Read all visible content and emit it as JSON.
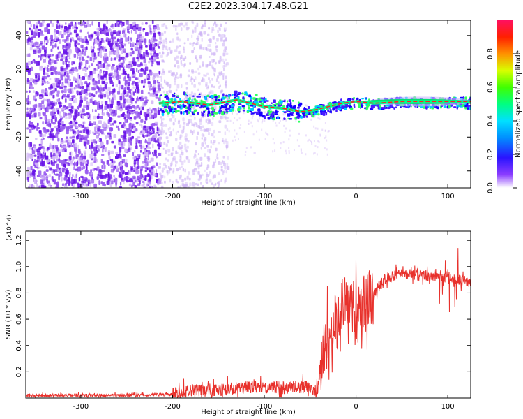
{
  "title": "C2E2.2023.304.17.48.G21",
  "chart_data": [
    {
      "type": "heatmap",
      "xlabel": "Height of straight line (km)",
      "ylabel": "Frequency (Hz)",
      "xlim": [
        -360,
        125
      ],
      "ylim": [
        -50,
        49
      ],
      "x_ticks": [
        -300,
        -200,
        -100,
        0,
        100
      ],
      "y_ticks": [
        -40,
        -20,
        0,
        20,
        40
      ],
      "colorbar": {
        "label": "Normalized spectral amplitude",
        "range": [
          0,
          1
        ],
        "ticks": [
          0.0,
          0.2,
          0.4,
          0.6,
          0.8
        ]
      },
      "ridge_line": {
        "x": [
          -215,
          -190,
          -160,
          -130,
          -100,
          -80,
          -60,
          -45,
          -30,
          -15,
          0,
          20,
          50,
          80,
          110,
          125
        ],
        "y": [
          0,
          1,
          -1,
          2,
          -2,
          -3,
          -5,
          -4,
          -2,
          0,
          1,
          0,
          1,
          1,
          1,
          1
        ]
      }
    },
    {
      "type": "line",
      "xlabel": "Height of straight line (km)",
      "ylabel": "SNR (10 * v/v)",
      "y_multiplier": "(x10^4)",
      "xlim": [
        -360,
        125
      ],
      "ylim": [
        0,
        1.27
      ],
      "x_ticks": [
        -300,
        -200,
        -100,
        0,
        100
      ],
      "y_ticks": [
        0.2,
        0.4,
        0.6,
        0.8,
        1.0,
        1.2
      ],
      "series": [
        {
          "color": "#e8312c",
          "x": [
            -360,
            -300,
            -250,
            -200,
            -180,
            -150,
            -120,
            -100,
            -80,
            -60,
            -50,
            -42,
            -38,
            -35,
            -30,
            -25,
            -20,
            -15,
            -10,
            -5,
            0,
            5,
            10,
            20,
            30,
            40,
            50,
            60,
            70,
            80,
            90,
            100,
            110,
            120,
            125
          ],
          "y": [
            0.02,
            0.02,
            0.02,
            0.03,
            0.06,
            0.06,
            0.08,
            0.09,
            0.08,
            0.08,
            0.09,
            0.05,
            0.25,
            0.4,
            0.45,
            0.55,
            0.6,
            0.7,
            0.68,
            0.72,
            0.62,
            0.65,
            0.72,
            0.8,
            0.9,
            0.93,
            0.95,
            0.94,
            0.93,
            0.93,
            0.92,
            0.91,
            0.9,
            0.89,
            0.88
          ]
        }
      ]
    }
  ]
}
